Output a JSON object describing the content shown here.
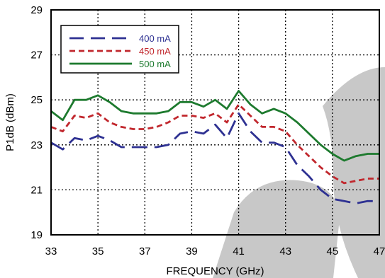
{
  "chart_data": {
    "type": "line",
    "xlabel": "FREQUENCY (GHz)",
    "ylabel": "P1dB (dBm)",
    "xlim": [
      33,
      47
    ],
    "ylim": [
      19,
      29
    ],
    "xticks": [
      "33",
      "35",
      "37",
      "39",
      "41",
      "43",
      "45",
      "47"
    ],
    "yticks": [
      "19",
      "21",
      "23",
      "25",
      "27",
      "29"
    ],
    "grid": true,
    "legend_position": "top-left",
    "series": [
      {
        "name": "400 mA",
        "color": "#2e3192",
        "style": "long-dash",
        "x": [
          33,
          33.5,
          34,
          34.5,
          35,
          35.5,
          36,
          36.5,
          37,
          37.5,
          38,
          38.5,
          39,
          39.5,
          40,
          40.5,
          41,
          41.5,
          42,
          42.5,
          43,
          43.5,
          44,
          44.5,
          45,
          45.5,
          46,
          46.5,
          47
        ],
        "values": [
          23.1,
          22.8,
          23.3,
          23.2,
          23.4,
          23.2,
          22.9,
          22.9,
          22.9,
          22.9,
          23.0,
          23.5,
          23.6,
          23.5,
          23.9,
          23.3,
          24.4,
          23.6,
          23.1,
          23.1,
          22.9,
          22.1,
          21.6,
          21.0,
          20.6,
          20.5,
          20.4,
          20.5,
          20.5
        ]
      },
      {
        "name": "450 mA",
        "color": "#c1272d",
        "style": "short-dash",
        "x": [
          33,
          33.5,
          34,
          34.5,
          35,
          35.5,
          36,
          36.5,
          37,
          37.5,
          38,
          38.5,
          39,
          39.5,
          40,
          40.5,
          41,
          41.5,
          42,
          42.5,
          43,
          43.5,
          44,
          44.5,
          45,
          45.5,
          46,
          46.5,
          47
        ],
        "values": [
          23.8,
          23.6,
          24.3,
          24.2,
          24.4,
          24.0,
          23.8,
          23.7,
          23.7,
          23.8,
          24.0,
          24.3,
          24.3,
          24.2,
          24.4,
          24.0,
          24.8,
          24.3,
          23.8,
          23.8,
          23.6,
          23.0,
          22.5,
          22.0,
          21.6,
          21.3,
          21.4,
          21.5,
          21.5
        ]
      },
      {
        "name": "500 mA",
        "color": "#1d7a2e",
        "style": "solid",
        "x": [
          33,
          33.5,
          34,
          34.5,
          35,
          35.5,
          36,
          36.5,
          37,
          37.5,
          38,
          38.5,
          39,
          39.5,
          40,
          40.5,
          41,
          41.5,
          42,
          42.5,
          43,
          43.5,
          44,
          44.5,
          45,
          45.5,
          46,
          46.5,
          47
        ],
        "values": [
          24.5,
          24.1,
          25.0,
          25.0,
          25.2,
          24.9,
          24.5,
          24.4,
          24.4,
          24.4,
          24.5,
          24.9,
          24.9,
          24.7,
          25.0,
          24.6,
          25.4,
          24.8,
          24.4,
          24.6,
          24.4,
          24.0,
          23.5,
          23.0,
          22.6,
          22.3,
          22.5,
          22.6,
          22.6
        ]
      }
    ]
  }
}
